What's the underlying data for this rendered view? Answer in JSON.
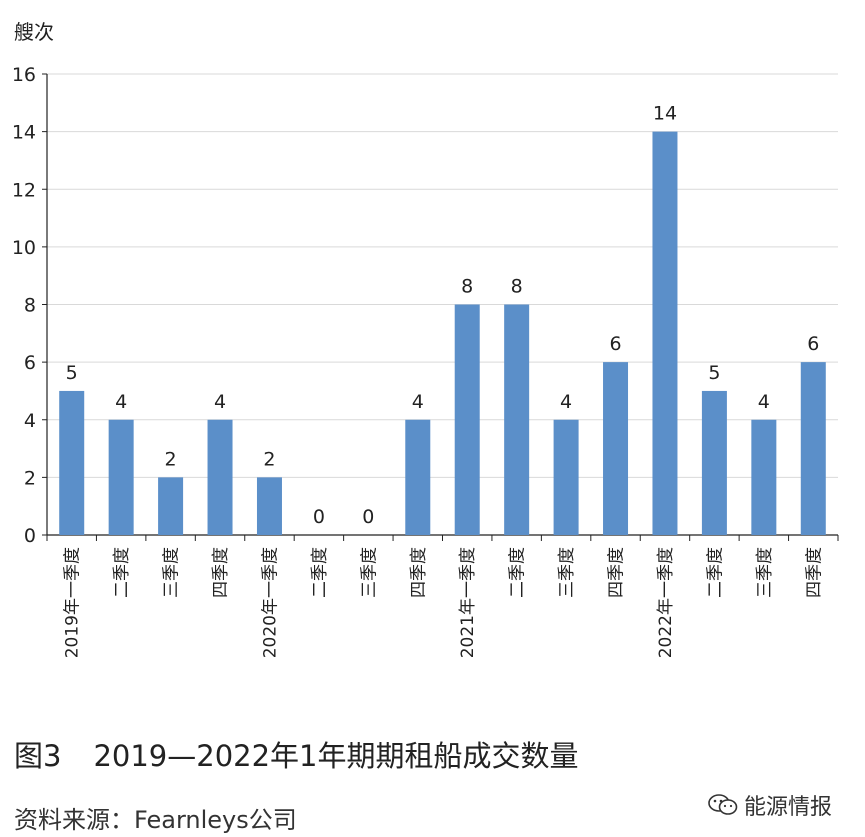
{
  "chart_data": {
    "type": "bar",
    "ylabel": "艘次",
    "ylim": [
      0,
      16
    ],
    "yticks": [
      0,
      2,
      4,
      6,
      8,
      10,
      12,
      14,
      16
    ],
    "grid": true,
    "categories": [
      "2019年一季度",
      "二季度",
      "三季度",
      "四季度",
      "2020年一季度",
      "二季度",
      "三季度",
      "四季度",
      "2021年一季度",
      "二季度",
      "三季度",
      "四季度",
      "2022年一季度",
      "二季度",
      "三季度",
      "四季度"
    ],
    "values": [
      5,
      4,
      2,
      4,
      2,
      0,
      0,
      4,
      8,
      8,
      4,
      6,
      14,
      5,
      4,
      6
    ],
    "bar_color": "#5b8fc9",
    "data_labels": true
  },
  "caption": {
    "figure_number": "图3",
    "title": "2019—2022年1年期期租船成交数量"
  },
  "source": "资料来源：Fearnleys公司",
  "watermark": {
    "text": "能源情报",
    "icon": "wechat-icon"
  }
}
